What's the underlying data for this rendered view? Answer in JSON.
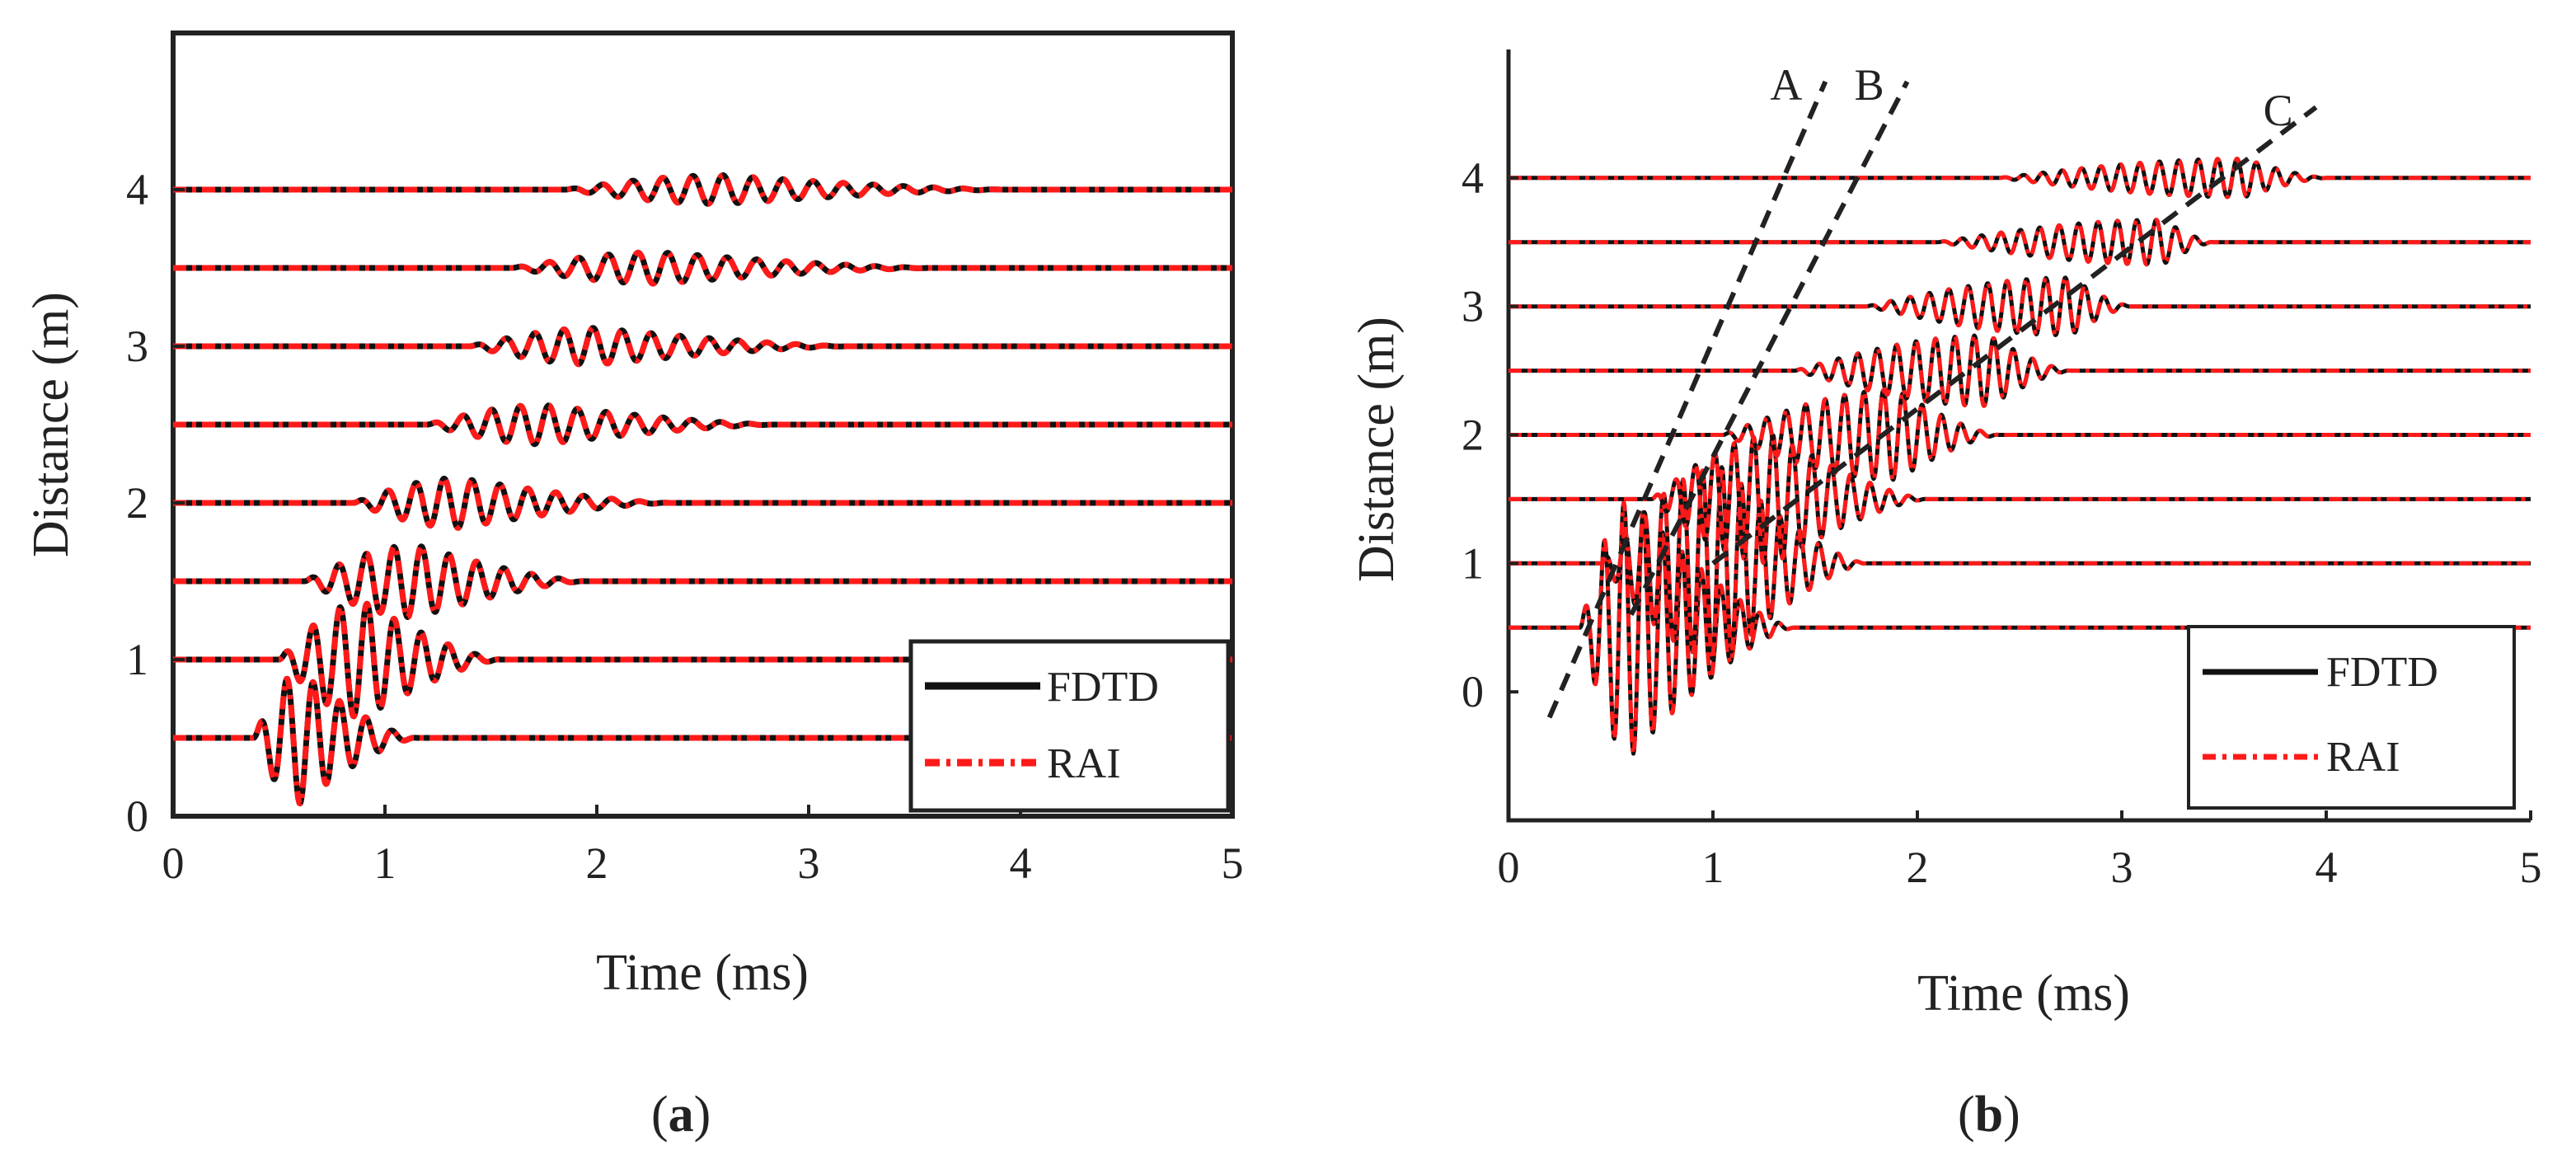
{
  "figure": {
    "panel_a_caption": {
      "open": "(",
      "letter": "a",
      "close": ")"
    },
    "panel_b_caption": {
      "open": "(",
      "letter": "b",
      "close": ")"
    }
  },
  "colors": {
    "fdtd": "#111111",
    "rai": "#ff1a1a",
    "guide": "#222222",
    "frame": "#222222"
  },
  "chart_data": [
    {
      "type": "line",
      "panel": "a",
      "title": "",
      "xlabel": "Time (ms)",
      "ylabel": "Distance (m)",
      "xlim": [
        0,
        5
      ],
      "ylim": [
        0,
        5
      ],
      "xticks": [
        "0",
        "1",
        "2",
        "3",
        "4",
        "5"
      ],
      "yticks": [
        "0",
        "1",
        "2",
        "3",
        "4"
      ],
      "legend": {
        "position": "bottom-right",
        "entries": [
          "FDTD",
          "RAI"
        ]
      },
      "series": [
        {
          "name": "FDTD",
          "style": "solid black"
        },
        {
          "name": "RAI",
          "style": "dash-dot red"
        }
      ],
      "trace_amplitude": 0.42,
      "traces": [
        {
          "offset": 0.5,
          "start": 0.38,
          "peak": 0.6,
          "end": 1.15,
          "period": 0.125,
          "amp": 1.0
        },
        {
          "offset": 1.0,
          "start": 0.5,
          "peak": 0.9,
          "end": 1.55,
          "period": 0.128,
          "amp": 0.88
        },
        {
          "offset": 1.5,
          "start": 0.62,
          "peak": 1.15,
          "end": 1.95,
          "period": 0.13,
          "amp": 0.55
        },
        {
          "offset": 2.0,
          "start": 0.85,
          "peak": 1.35,
          "end": 2.35,
          "period": 0.132,
          "amp": 0.38
        },
        {
          "offset": 2.5,
          "start": 1.2,
          "peak": 1.75,
          "end": 2.85,
          "period": 0.135,
          "amp": 0.3
        },
        {
          "offset": 3.0,
          "start": 1.4,
          "peak": 2.0,
          "end": 3.2,
          "period": 0.137,
          "amp": 0.28
        },
        {
          "offset": 3.5,
          "start": 1.6,
          "peak": 2.3,
          "end": 3.6,
          "period": 0.14,
          "amp": 0.24
        },
        {
          "offset": 4.0,
          "start": 1.85,
          "peak": 2.6,
          "end": 3.95,
          "period": 0.142,
          "amp": 0.22
        }
      ]
    },
    {
      "type": "line",
      "panel": "b",
      "title": "",
      "xlabel": "Time (ms)",
      "ylabel": "Distance (m)",
      "xlim": [
        0,
        5
      ],
      "ylim": [
        -1,
        5
      ],
      "xticks": [
        "0",
        "1",
        "2",
        "3",
        "4",
        "5"
      ],
      "yticks": [
        "0",
        "1",
        "2",
        "3",
        "4"
      ],
      "legend": {
        "position": "bottom-right",
        "entries": [
          "FDTD",
          "RAI"
        ]
      },
      "series": [
        {
          "name": "FDTD",
          "style": "solid black"
        },
        {
          "name": "RAI",
          "style": "dash-dot red"
        }
      ],
      "trace_amplitude": 0.5,
      "traces": [
        {
          "offset": 0.5,
          "start": 0.35,
          "peak": 0.6,
          "end": 1.4,
          "period": 0.095,
          "amp": 2.0
        },
        {
          "offset": 1.0,
          "start": 0.45,
          "peak": 1.05,
          "end": 1.75,
          "period": 0.095,
          "amp": 1.5
        },
        {
          "offset": 1.5,
          "start": 0.7,
          "peak": 1.3,
          "end": 2.05,
          "period": 0.095,
          "amp": 1.0
        },
        {
          "offset": 2.0,
          "start": 1.05,
          "peak": 1.9,
          "end": 2.4,
          "period": 0.095,
          "amp": 0.7
        },
        {
          "offset": 2.5,
          "start": 1.4,
          "peak": 2.35,
          "end": 2.75,
          "period": 0.095,
          "amp": 0.55
        },
        {
          "offset": 3.0,
          "start": 1.75,
          "peak": 2.75,
          "end": 3.05,
          "period": 0.095,
          "amp": 0.45
        },
        {
          "offset": 3.5,
          "start": 2.1,
          "peak": 3.2,
          "end": 3.45,
          "period": 0.095,
          "amp": 0.35
        },
        {
          "offset": 4.0,
          "start": 2.4,
          "peak": 3.6,
          "end": 4.0,
          "period": 0.095,
          "amp": 0.3
        }
      ],
      "guide_lines": [
        {
          "label": "A",
          "from": [
            0.2,
            -0.2
          ],
          "to": [
            1.55,
            4.75
          ]
        },
        {
          "label": "B",
          "from": [
            0.6,
            0.6
          ],
          "to": [
            1.95,
            4.75
          ]
        },
        {
          "label": "C",
          "from": [
            1.0,
            1.0
          ],
          "to": [
            3.95,
            4.55
          ]
        }
      ]
    }
  ]
}
